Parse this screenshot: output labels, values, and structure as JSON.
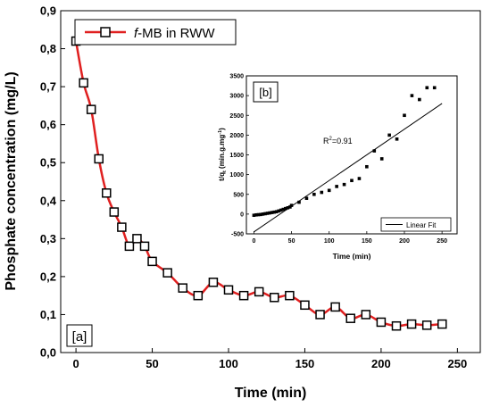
{
  "chart_data": [
    {
      "type": "line",
      "panel_label": "[a]",
      "xlabel": "Time (min)",
      "ylabel": "Phosphate concentration (mg/L)",
      "xlim": [
        -10,
        265
      ],
      "ylim": [
        0,
        0.9
      ],
      "x_ticks": [
        0,
        50,
        100,
        150,
        200,
        250
      ],
      "x_tick_labels": [
        "0",
        "50",
        "100",
        "150",
        "200",
        "250"
      ],
      "y_ticks": [
        0,
        0.1,
        0.2,
        0.3,
        0.4,
        0.5,
        0.6,
        0.7,
        0.8,
        0.9
      ],
      "y_tick_labels": [
        "0,0",
        "0,1",
        "0,2",
        "0,3",
        "0,4",
        "0,5",
        "0,6",
        "0,7",
        "0,8",
        "0,9"
      ],
      "legend_position": "top-left",
      "legend": {
        "prefix": "f",
        "rest": "-MB in RWW"
      },
      "line_color": "#e02020",
      "marker": "open-square",
      "series": [
        {
          "name": "f-MB in RWW",
          "x": [
            0,
            5,
            10,
            15,
            20,
            25,
            30,
            35,
            40,
            45,
            50,
            60,
            70,
            80,
            90,
            100,
            110,
            120,
            130,
            140,
            150,
            160,
            170,
            180,
            190,
            200,
            210,
            220,
            230,
            240
          ],
          "y": [
            0.82,
            0.71,
            0.64,
            0.51,
            0.42,
            0.37,
            0.33,
            0.28,
            0.3,
            0.28,
            0.24,
            0.21,
            0.17,
            0.15,
            0.185,
            0.165,
            0.15,
            0.16,
            0.145,
            0.15,
            0.125,
            0.1,
            0.12,
            0.09,
            0.1,
            0.08,
            0.07,
            0.075,
            0.072,
            0.075
          ]
        }
      ]
    },
    {
      "type": "scatter",
      "panel_label": "[b]",
      "xlabel": "Time (min)",
      "ylabel_main": "t/q",
      "ylabel_sub": "t",
      "ylabel_rest": " (min.g.mg",
      "ylabel_sup": "-1",
      "ylabel_close": ")",
      "xlim": [
        -10,
        270
      ],
      "ylim": [
        -500,
        3500
      ],
      "x_ticks": [
        0,
        50,
        100,
        150,
        200,
        250
      ],
      "x_tick_labels": [
        "0",
        "50",
        "100",
        "150",
        "200",
        "250"
      ],
      "y_ticks": [
        -500,
        0,
        500,
        1000,
        1500,
        2000,
        2500,
        3000,
        3500
      ],
      "y_tick_labels": [
        "-500",
        "0",
        "500",
        "1000",
        "1500",
        "2000",
        "2500",
        "3000",
        "3500"
      ],
      "annotation": {
        "prefix": "R",
        "sup": "2",
        "rest": "=0.91"
      },
      "legend_position": "bottom-right",
      "legend": "Linear Fit",
      "series": [
        {
          "name": "data",
          "x": [
            0,
            3,
            6,
            9,
            12,
            15,
            18,
            21,
            24,
            27,
            30,
            33,
            36,
            39,
            42,
            45,
            48,
            50,
            60,
            70,
            80,
            90,
            100,
            110,
            120,
            130,
            140,
            150,
            160,
            170,
            180,
            190,
            200,
            210,
            220,
            230,
            240
          ],
          "y": [
            -30,
            -20,
            -15,
            -10,
            0,
            10,
            20,
            30,
            40,
            50,
            60,
            80,
            100,
            120,
            140,
            160,
            180,
            220,
            300,
            400,
            500,
            550,
            600,
            700,
            750,
            850,
            900,
            1200,
            1600,
            1400,
            2000,
            1900,
            2500,
            3000,
            2900,
            3200,
            3200
          ]
        }
      ],
      "fit_line": {
        "x": [
          0,
          250
        ],
        "y": [
          -450,
          2800
        ]
      }
    }
  ]
}
